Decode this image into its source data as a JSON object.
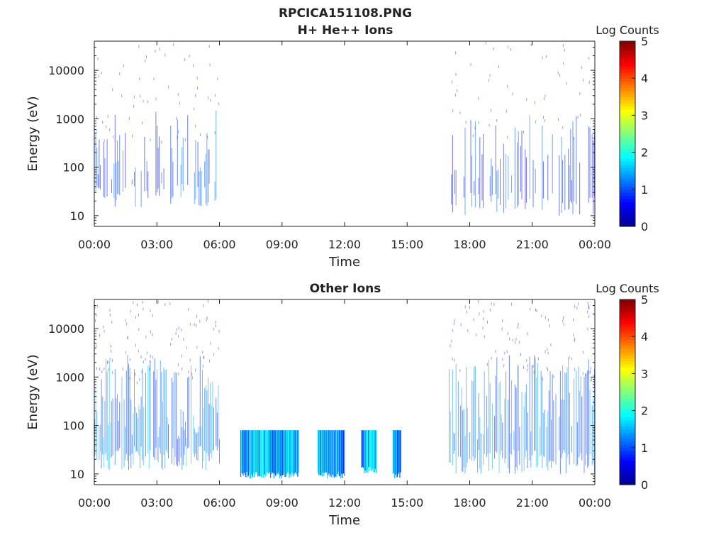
{
  "figure": {
    "suptitle": "RPCICA151108.PNG"
  },
  "colormap": [
    "#00008f",
    "#0000ff",
    "#0080ff",
    "#00ffff",
    "#80ff80",
    "#ffff00",
    "#ff8000",
    "#ff0000",
    "#800000"
  ],
  "chart_data": [
    {
      "type": "heatmap",
      "title": "H+ He++ Ions",
      "xlabel": "Time",
      "ylabel": "Energy (eV)",
      "x_ticks": [
        "00:00",
        "03:00",
        "06:00",
        "09:00",
        "12:00",
        "15:00",
        "18:00",
        "21:00",
        "00:00"
      ],
      "xlim_hours": [
        0,
        24
      ],
      "y_scale": "log",
      "y_ticks": [
        "10",
        "100",
        "1000",
        "10000"
      ],
      "ylim_eV": [
        6,
        40000
      ],
      "colorbar": {
        "label": "Log Counts",
        "range": [
          0,
          5
        ],
        "ticks": [
          "0",
          "1",
          "2",
          "3",
          "4",
          "5"
        ]
      },
      "activity_bands": [
        {
          "start_h": 0.0,
          "end_h": 6.0,
          "e_min": 15,
          "e_max": 1500,
          "core_min": 20,
          "core_max": 300,
          "level": 0.9,
          "density": 0.5
        },
        {
          "start_h": 17.0,
          "end_h": 24.0,
          "e_min": 10,
          "e_max": 1500,
          "core_min": 20,
          "core_max": 400,
          "level": 0.8,
          "density": 0.45
        }
      ]
    },
    {
      "type": "heatmap",
      "title": "Other Ions",
      "xlabel": "Time",
      "ylabel": "Energy (eV)",
      "x_ticks": [
        "00:00",
        "03:00",
        "06:00",
        "09:00",
        "12:00",
        "15:00",
        "18:00",
        "21:00",
        "00:00"
      ],
      "xlim_hours": [
        0,
        24
      ],
      "y_scale": "log",
      "y_ticks": [
        "10",
        "100",
        "1000",
        "10000"
      ],
      "ylim_eV": [
        6,
        40000
      ],
      "colorbar": {
        "label": "Log Counts",
        "range": [
          0,
          5
        ],
        "ticks": [
          "0",
          "1",
          "2",
          "3",
          "4",
          "5"
        ]
      },
      "activity_bands": [
        {
          "start_h": 0.0,
          "end_h": 6.0,
          "e_min": 12,
          "e_max": 3000,
          "core_min": 15,
          "core_max": 800,
          "level": 1.2,
          "density": 0.85
        },
        {
          "start_h": 7.0,
          "end_h": 9.8,
          "e_min": 8,
          "e_max": 80,
          "core_min": 8,
          "core_max": 80,
          "level": 1.5,
          "density": 1.0
        },
        {
          "start_h": 10.7,
          "end_h": 12.0,
          "e_min": 8,
          "e_max": 80,
          "core_min": 8,
          "core_max": 80,
          "level": 1.3,
          "density": 1.0
        },
        {
          "start_h": 12.8,
          "end_h": 13.5,
          "e_min": 10,
          "e_max": 80,
          "core_min": 10,
          "core_max": 80,
          "level": 1.5,
          "density": 1.0
        },
        {
          "start_h": 14.3,
          "end_h": 14.7,
          "e_min": 8,
          "e_max": 80,
          "core_min": 8,
          "core_max": 80,
          "level": 1.4,
          "density": 1.0
        },
        {
          "start_h": 17.0,
          "end_h": 24.0,
          "e_min": 10,
          "e_max": 3000,
          "core_min": 15,
          "core_max": 900,
          "level": 1.1,
          "density": 0.8
        }
      ]
    }
  ]
}
